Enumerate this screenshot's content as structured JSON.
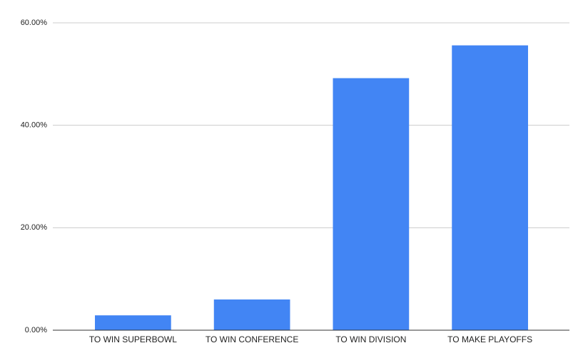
{
  "chart_data": {
    "type": "bar",
    "categories": [
      "TO WIN SUPERBOWL",
      "TO WIN CONFERENCE",
      "TO WIN DIVISION",
      "TO MAKE PLAYOFFS"
    ],
    "values": [
      2.9,
      6.0,
      49.2,
      55.6
    ],
    "color": "#4285f4",
    "ylim": [
      0,
      60
    ],
    "yticks": [
      {
        "value": 0,
        "label": "0.00%"
      },
      {
        "value": 20,
        "label": "20.00%"
      },
      {
        "value": 40,
        "label": "40.00%"
      },
      {
        "value": 60,
        "label": "60.00%"
      }
    ],
    "grid": true
  }
}
